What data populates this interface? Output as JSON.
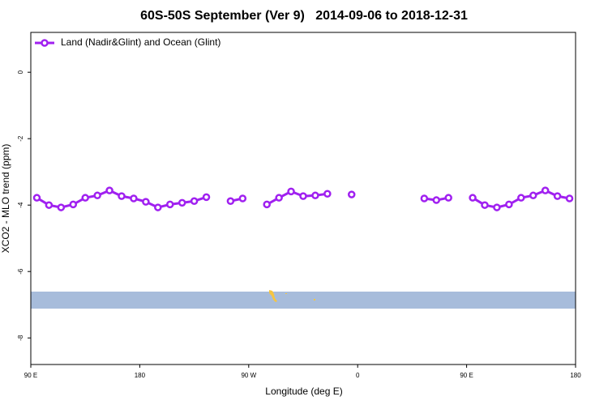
{
  "chart_data": {
    "type": "line",
    "title": "60S-50S September (Ver 9)   2014-09-06 to 2018-12-31",
    "xlabel": "Longitude (deg E)",
    "ylabel": "XCO2 - MLO trend (ppm)",
    "x": [
      95,
      105,
      115,
      125,
      135,
      145,
      155,
      165,
      175,
      185,
      195,
      205,
      215,
      225,
      235,
      245,
      255,
      265,
      275,
      285,
      295,
      305,
      315,
      325,
      335,
      345,
      355,
      365,
      375,
      385,
      395,
      405,
      415,
      425,
      435,
      445,
      455,
      465,
      475,
      485,
      495,
      505,
      515,
      525,
      535
    ],
    "series": [
      {
        "name": "Land (Nadir&Glint) and Ocean (Glint)",
        "color": "#a020f0",
        "values": [
          -3.78,
          -4.0,
          -4.07,
          -3.98,
          -3.78,
          -3.71,
          -3.56,
          -3.73,
          -3.8,
          -3.9,
          -4.07,
          -3.98,
          -3.93,
          -3.88,
          -3.76,
          null,
          -3.88,
          -3.8,
          null,
          -3.98,
          -3.78,
          -3.59,
          -3.73,
          -3.71,
          -3.66,
          null,
          -3.68,
          null,
          null,
          null,
          null,
          null,
          -3.8,
          -3.85,
          -3.78,
          null,
          -3.78,
          -4.0,
          -4.07,
          -3.98,
          -3.78,
          -3.71,
          -3.56,
          -3.73,
          -3.8
        ]
      }
    ],
    "xlim": [
      90,
      540
    ],
    "xticks": [
      {
        "value": 90,
        "label": "90 E"
      },
      {
        "value": 180,
        "label": "180"
      },
      {
        "value": 270,
        "label": "90 W"
      },
      {
        "value": 360,
        "label": "0"
      },
      {
        "value": 450,
        "label": "90 E"
      },
      {
        "value": 540,
        "label": "180"
      }
    ],
    "ylim": [
      -8.8,
      1.2
    ],
    "yticks": [
      0,
      -2,
      -4,
      -6,
      -8
    ],
    "legend": "top-left"
  }
}
